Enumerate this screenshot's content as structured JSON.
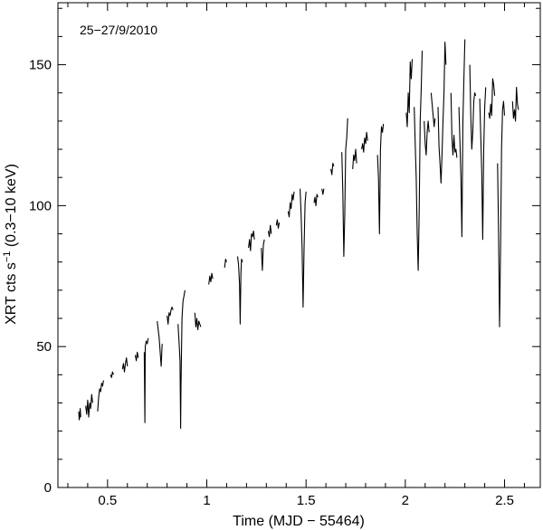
{
  "chart_data": {
    "type": "line",
    "title": "",
    "annotation": "25−27/9/2010",
    "xlabel": "Time (MJD − 55464)",
    "ylabel_main": "XRT cts s",
    "ylabel_sup": "−1",
    "ylabel_tail": " (0.3−10 keV)",
    "xlim": [
      0.25,
      2.68
    ],
    "ylim": [
      0,
      172
    ],
    "x_ticks": [
      {
        "value": 0.5,
        "label": "0.5"
      },
      {
        "value": 1.0,
        "label": "1"
      },
      {
        "value": 1.5,
        "label": "1.5"
      },
      {
        "value": 2.0,
        "label": "2"
      },
      {
        "value": 2.5,
        "label": "2.5"
      }
    ],
    "y_ticks": [
      {
        "value": 0,
        "label": "0"
      },
      {
        "value": 50,
        "label": "50"
      },
      {
        "value": 100,
        "label": "100"
      },
      {
        "value": 150,
        "label": "150"
      }
    ],
    "grid": false,
    "legend": "none",
    "series": [
      {
        "segments": [
          [
            [
              0.355,
              27
            ],
            [
              0.357,
              24
            ],
            [
              0.36,
              25
            ],
            [
              0.362,
              28
            ],
            [
              0.365,
              25
            ]
          ],
          [
            [
              0.39,
              29
            ],
            [
              0.395,
              26
            ],
            [
              0.4,
              31
            ],
            [
              0.405,
              25
            ],
            [
              0.41,
              30
            ],
            [
              0.415,
              28
            ],
            [
              0.42,
              33
            ],
            [
              0.425,
              30
            ]
          ],
          [
            [
              0.45,
              27
            ],
            [
              0.455,
              32
            ],
            [
              0.46,
              35
            ],
            [
              0.465,
              34
            ],
            [
              0.47,
              37
            ],
            [
              0.475,
              36
            ],
            [
              0.48,
              38
            ]
          ],
          [
            [
              0.515,
              40
            ],
            [
              0.52,
              39
            ],
            [
              0.525,
              41
            ],
            [
              0.53,
              40
            ]
          ],
          [
            [
              0.575,
              42
            ],
            [
              0.58,
              44
            ],
            [
              0.585,
              41
            ],
            [
              0.59,
              44
            ],
            [
              0.595,
              46
            ],
            [
              0.6,
              43
            ]
          ],
          [
            [
              0.64,
              47
            ],
            [
              0.645,
              45
            ],
            [
              0.65,
              48
            ],
            [
              0.655,
              46
            ]
          ],
          [
            [
              0.685,
              48
            ],
            [
              0.688,
              23
            ],
            [
              0.69,
              50
            ],
            [
              0.695,
              52
            ],
            [
              0.7,
              51
            ],
            [
              0.705,
              53
            ]
          ],
          [
            [
              0.75,
              59
            ],
            [
              0.755,
              56
            ],
            [
              0.76,
              53
            ],
            [
              0.765,
              48
            ],
            [
              0.77,
              43
            ],
            [
              0.775,
              51
            ]
          ],
          [
            [
              0.8,
              61
            ],
            [
              0.805,
              58
            ],
            [
              0.81,
              62
            ],
            [
              0.815,
              61
            ],
            [
              0.82,
              63
            ],
            [
              0.825,
              64
            ],
            [
              0.83,
              63
            ]
          ],
          [
            [
              0.855,
              58
            ],
            [
              0.86,
              52
            ],
            [
              0.865,
              45
            ],
            [
              0.868,
              21
            ],
            [
              0.87,
              36
            ],
            [
              0.875,
              60
            ],
            [
              0.88,
              66
            ],
            [
              0.885,
              68
            ],
            [
              0.89,
              70
            ]
          ],
          [
            [
              0.94,
              62
            ],
            [
              0.945,
              57
            ],
            [
              0.95,
              60
            ],
            [
              0.955,
              56
            ],
            [
              0.96,
              59
            ],
            [
              0.965,
              58
            ],
            [
              0.97,
              57
            ]
          ],
          [
            [
              1.01,
              72
            ],
            [
              1.015,
              75
            ],
            [
              1.02,
              73
            ],
            [
              1.025,
              76
            ],
            [
              1.03,
              74
            ]
          ],
          [
            [
              1.09,
              78
            ],
            [
              1.095,
              81
            ],
            [
              1.1,
              80
            ]
          ],
          [
            [
              1.155,
              82
            ],
            [
              1.16,
              79
            ],
            [
              1.165,
              72
            ],
            [
              1.168,
              58
            ],
            [
              1.172,
              76
            ],
            [
              1.175,
              81
            ],
            [
              1.18,
              80
            ]
          ],
          [
            [
              1.21,
              85
            ],
            [
              1.215,
              88
            ],
            [
              1.22,
              84
            ],
            [
              1.225,
              90
            ],
            [
              1.23,
              89
            ],
            [
              1.235,
              91
            ],
            [
              1.24,
              88
            ]
          ],
          [
            [
              1.275,
              85
            ],
            [
              1.28,
              77
            ],
            [
              1.285,
              86
            ],
            [
              1.29,
              88
            ]
          ],
          [
            [
              1.31,
              91
            ],
            [
              1.315,
              89
            ],
            [
              1.32,
              93
            ],
            [
              1.325,
              90
            ]
          ],
          [
            [
              1.35,
              93
            ],
            [
              1.355,
              95
            ],
            [
              1.36,
              92
            ],
            [
              1.365,
              94
            ]
          ],
          [
            [
              1.41,
              98
            ],
            [
              1.415,
              96
            ],
            [
              1.42,
              101
            ],
            [
              1.425,
              99
            ],
            [
              1.43,
              104
            ],
            [
              1.435,
              102
            ],
            [
              1.44,
              105
            ]
          ],
          [
            [
              1.47,
              106
            ],
            [
              1.475,
              97
            ],
            [
              1.48,
              85
            ],
            [
              1.485,
              64
            ],
            [
              1.49,
              85
            ],
            [
              1.495,
              101
            ],
            [
              1.5,
              105
            ]
          ],
          [
            [
              1.54,
              101
            ],
            [
              1.545,
              103
            ],
            [
              1.55,
              100
            ],
            [
              1.555,
              104
            ],
            [
              1.56,
              103
            ]
          ],
          [
            [
              1.58,
              106
            ],
            [
              1.585,
              104
            ],
            [
              1.59,
              106
            ]
          ],
          [
            [
              1.625,
              113
            ],
            [
              1.63,
              111
            ],
            [
              1.635,
              115
            ],
            [
              1.64,
              114
            ]
          ],
          [
            [
              1.68,
              119
            ],
            [
              1.685,
              105
            ],
            [
              1.69,
              82
            ],
            [
              1.695,
              96
            ],
            [
              1.7,
              120
            ],
            [
              1.705,
              124
            ],
            [
              1.71,
              131
            ]
          ],
          [
            [
              1.735,
              113
            ],
            [
              1.74,
              118
            ],
            [
              1.745,
              116
            ],
            [
              1.75,
              120
            ],
            [
              1.755,
              115
            ]
          ],
          [
            [
              1.78,
              120
            ],
            [
              1.785,
              122
            ],
            [
              1.79,
              119
            ],
            [
              1.795,
              124
            ],
            [
              1.8,
              122
            ],
            [
              1.805,
              126
            ],
            [
              1.81,
              123
            ]
          ],
          [
            [
              1.86,
              118
            ],
            [
              1.865,
              110
            ],
            [
              1.87,
              90
            ],
            [
              1.875,
              120
            ],
            [
              1.88,
              128
            ],
            [
              1.885,
              126
            ],
            [
              1.89,
              129
            ]
          ],
          [
            [
              2.005,
              133
            ],
            [
              2.01,
              128
            ],
            [
              2.015,
              140
            ],
            [
              2.02,
              133
            ],
            [
              2.025,
              151
            ],
            [
              2.03,
              145
            ],
            [
              2.035,
              152
            ]
          ],
          [
            [
              2.045,
              135
            ],
            [
              2.05,
              122
            ],
            [
              2.055,
              110
            ],
            [
              2.06,
              90
            ],
            [
              2.065,
              77
            ],
            [
              2.07,
              98
            ],
            [
              2.075,
              130
            ],
            [
              2.08,
              141
            ],
            [
              2.085,
              155
            ]
          ],
          [
            [
              2.095,
              130
            ],
            [
              2.1,
              122
            ],
            [
              2.105,
              118
            ],
            [
              2.11,
              126
            ],
            [
              2.115,
              130
            ],
            [
              2.12,
              126
            ]
          ],
          [
            [
              2.13,
              140
            ],
            [
              2.135,
              136
            ],
            [
              2.14,
              132
            ],
            [
              2.145,
              128
            ],
            [
              2.15,
              131
            ]
          ],
          [
            [
              2.165,
              135
            ],
            [
              2.17,
              121
            ],
            [
              2.175,
              115
            ],
            [
              2.18,
              108
            ],
            [
              2.185,
              118
            ],
            [
              2.19,
              130
            ],
            [
              2.195,
              140
            ],
            [
              2.2,
              158
            ],
            [
              2.205,
              150
            ]
          ],
          [
            [
              2.23,
              140
            ],
            [
              2.235,
              124
            ],
            [
              2.24,
              118
            ],
            [
              2.245,
              125
            ],
            [
              2.25,
              119
            ],
            [
              2.255,
              120
            ],
            [
              2.26,
              117
            ]
          ],
          [
            [
              2.27,
              135
            ],
            [
              2.275,
              123
            ],
            [
              2.28,
              110
            ],
            [
              2.285,
              89
            ],
            [
              2.29,
              130
            ],
            [
              2.295,
              145
            ],
            [
              2.3,
              159
            ]
          ],
          [
            [
              2.325,
              150
            ],
            [
              2.33,
              132
            ],
            [
              2.335,
              120
            ],
            [
              2.34,
              126
            ],
            [
              2.345,
              137
            ],
            [
              2.35,
              140
            ],
            [
              2.355,
              139
            ]
          ],
          [
            [
              2.375,
              138
            ],
            [
              2.38,
              125
            ],
            [
              2.385,
              112
            ],
            [
              2.39,
              88
            ],
            [
              2.395,
              120
            ],
            [
              2.4,
              135
            ],
            [
              2.405,
              142
            ]
          ],
          [
            [
              2.42,
              133
            ],
            [
              2.425,
              131
            ],
            [
              2.43,
              136
            ],
            [
              2.435,
              132
            ],
            [
              2.44,
              145
            ],
            [
              2.445,
              143
            ],
            [
              2.45,
              139
            ]
          ],
          [
            [
              2.465,
              115
            ],
            [
              2.47,
              90
            ],
            [
              2.475,
              57
            ],
            [
              2.48,
              85
            ],
            [
              2.485,
              120
            ],
            [
              2.49,
              134
            ],
            [
              2.495,
              137
            ],
            [
              2.5,
              132
            ]
          ],
          [
            [
              2.54,
              137
            ],
            [
              2.545,
              131
            ],
            [
              2.55,
              134
            ],
            [
              2.555,
              130
            ],
            [
              2.56,
              142
            ],
            [
              2.565,
              136
            ],
            [
              2.57,
              134
            ]
          ]
        ]
      }
    ]
  }
}
